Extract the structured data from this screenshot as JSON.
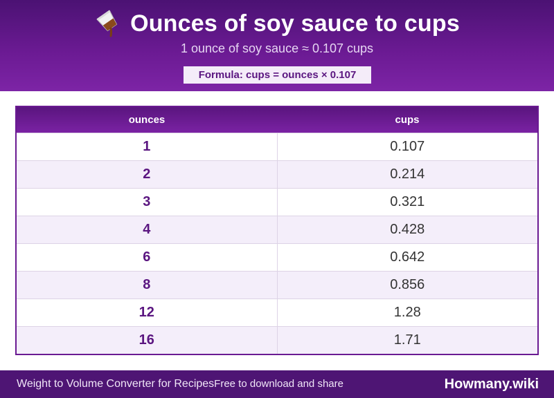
{
  "header": {
    "title": "Ounces of soy sauce to cups",
    "subtitle": "1 ounce of soy sauce ≈ 0.107 cups",
    "formula": "Formula: cups = ounces × 0.107",
    "icon": "pouring-cup-icon"
  },
  "table": {
    "columns": [
      "ounces",
      "cups"
    ],
    "rows": [
      {
        "ounces": "1",
        "cups": "0.107"
      },
      {
        "ounces": "2",
        "cups": "0.214"
      },
      {
        "ounces": "3",
        "cups": "0.321"
      },
      {
        "ounces": "4",
        "cups": "0.428"
      },
      {
        "ounces": "6",
        "cups": "0.642"
      },
      {
        "ounces": "8",
        "cups": "0.856"
      },
      {
        "ounces": "12",
        "cups": "1.28"
      },
      {
        "ounces": "16",
        "cups": "1.71"
      }
    ]
  },
  "footer": {
    "tagline": "Weight to Volume Converter for Recipes",
    "subtagline": "Free to download and share",
    "brand": "Howmany.wiki"
  },
  "colors": {
    "accent": "#6a1a92",
    "header_dark": "#4b1273",
    "row_alt": "#f4eefa"
  }
}
